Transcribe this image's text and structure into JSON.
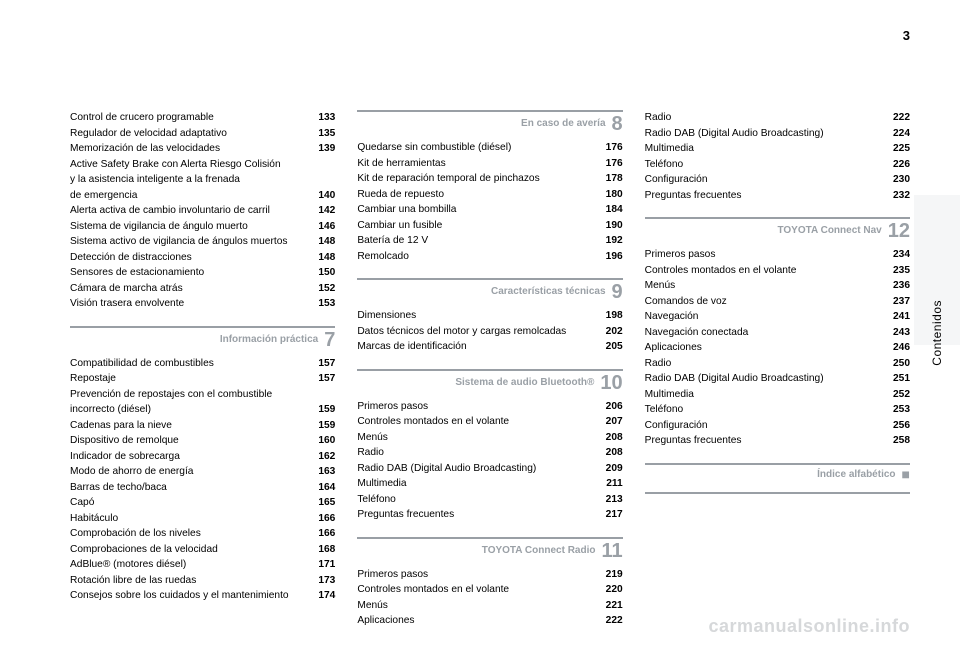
{
  "page_number": "3",
  "side_label": "Contenidos",
  "watermark": "carmanualsonline.info",
  "columns": [
    {
      "blocks": [
        {
          "type": "entries",
          "rows": [
            {
              "label": "Control de crucero programable",
              "page": "133"
            },
            {
              "label": "Regulador de velocidad adaptativo",
              "page": "135"
            },
            {
              "label": "Memorización de las velocidades",
              "page": "139"
            },
            {
              "label": "Active Safety Brake con Alerta Riesgo Colisión",
              "page": ""
            },
            {
              "label": "y la asistencia inteligente a la frenada",
              "page": ""
            },
            {
              "label": "de emergencia",
              "page": "140"
            },
            {
              "label": "Alerta activa de cambio involuntario de carril",
              "page": "142"
            },
            {
              "label": "Sistema de vigilancia de ángulo muerto",
              "page": "146"
            },
            {
              "label": "Sistema activo de vigilancia de ángulos muertos",
              "page": "148"
            },
            {
              "label": "Detección de distracciones",
              "page": "148"
            },
            {
              "label": "Sensores de estacionamiento",
              "page": "150"
            },
            {
              "label": "Cámara de marcha atrás",
              "page": "152"
            },
            {
              "label": "Visión trasera envolvente",
              "page": "153"
            }
          ]
        },
        {
          "type": "section",
          "title": "Información práctica",
          "num": "7"
        },
        {
          "type": "entries",
          "rows": [
            {
              "label": "Compatibilidad de combustibles",
              "page": "157"
            },
            {
              "label": "Repostaje",
              "page": "157"
            },
            {
              "label": "Prevención de repostajes con el combustible",
              "page": ""
            },
            {
              "label": "incorrecto (diésel)",
              "page": "159"
            },
            {
              "label": "Cadenas para la nieve",
              "page": "159"
            },
            {
              "label": "Dispositivo de remolque",
              "page": "160"
            },
            {
              "label": "Indicador de sobrecarga",
              "page": "162"
            },
            {
              "label": "Modo de ahorro de energía",
              "page": "163"
            },
            {
              "label": "Barras de techo/baca",
              "page": "164"
            },
            {
              "label": "Capó",
              "page": "165"
            },
            {
              "label": "Habitáculo",
              "page": "166"
            },
            {
              "label": "Comprobación de los niveles",
              "page": "166"
            },
            {
              "label": "Comprobaciones de la velocidad",
              "page": "168"
            },
            {
              "label": "AdBlue® (motores diésel)",
              "page": "171"
            },
            {
              "label": "Rotación libre de las ruedas",
              "page": "173"
            },
            {
              "label": "Consejos sobre los cuidados y el mantenimiento",
              "page": "174"
            }
          ]
        }
      ]
    },
    {
      "blocks": [
        {
          "type": "section",
          "title": "En caso de avería",
          "num": "8",
          "first": true
        },
        {
          "type": "entries",
          "rows": [
            {
              "label": "Quedarse sin combustible (diésel)",
              "page": "176"
            },
            {
              "label": "Kit de herramientas",
              "page": "176"
            },
            {
              "label": "Kit de reparación temporal de pinchazos",
              "page": "178"
            },
            {
              "label": "Rueda de repuesto",
              "page": "180"
            },
            {
              "label": "Cambiar una bombilla",
              "page": "184"
            },
            {
              "label": "Cambiar un fusible",
              "page": "190"
            },
            {
              "label": "Batería de 12 V",
              "page": "192"
            },
            {
              "label": "Remolcado",
              "page": "196"
            }
          ]
        },
        {
          "type": "section",
          "title": "Características técnicas",
          "num": "9"
        },
        {
          "type": "entries",
          "rows": [
            {
              "label": "Dimensiones",
              "page": "198"
            },
            {
              "label": "Datos técnicos del motor y cargas remolcadas",
              "page": "202"
            },
            {
              "label": "Marcas de identificación",
              "page": "205"
            }
          ]
        },
        {
          "type": "section",
          "title": "Sistema de audio Bluetooth®",
          "num": "10"
        },
        {
          "type": "entries",
          "rows": [
            {
              "label": "Primeros pasos",
              "page": "206"
            },
            {
              "label": "Controles montados en el volante",
              "page": "207"
            },
            {
              "label": "Menús",
              "page": "208"
            },
            {
              "label": "Radio",
              "page": "208"
            },
            {
              "label": "Radio DAB (Digital Audio Broadcasting)",
              "page": "209"
            },
            {
              "label": "Multimedia",
              "page": "211"
            },
            {
              "label": "Teléfono",
              "page": "213"
            },
            {
              "label": "Preguntas frecuentes",
              "page": "217"
            }
          ]
        },
        {
          "type": "section",
          "title": "TOYOTA Connect Radio",
          "num": "11"
        },
        {
          "type": "entries",
          "rows": [
            {
              "label": "Primeros pasos",
              "page": "219"
            },
            {
              "label": "Controles montados en el volante",
              "page": "220"
            },
            {
              "label": "Menús",
              "page": "221"
            },
            {
              "label": "Aplicaciones",
              "page": "222"
            }
          ]
        }
      ]
    },
    {
      "blocks": [
        {
          "type": "entries",
          "rows": [
            {
              "label": "Radio",
              "page": "222"
            },
            {
              "label": "Radio DAB (Digital Audio Broadcasting)",
              "page": "224"
            },
            {
              "label": "Multimedia",
              "page": "225"
            },
            {
              "label": "Teléfono",
              "page": "226"
            },
            {
              "label": "Configuración",
              "page": "230"
            },
            {
              "label": "Preguntas frecuentes",
              "page": "232"
            }
          ]
        },
        {
          "type": "section",
          "title": "TOYOTA Connect Nav",
          "num": "12"
        },
        {
          "type": "entries",
          "rows": [
            {
              "label": "Primeros pasos",
              "page": "234"
            },
            {
              "label": "Controles montados en el volante",
              "page": "235"
            },
            {
              "label": "Menús",
              "page": "236"
            },
            {
              "label": "Comandos de voz",
              "page": "237"
            },
            {
              "label": "Navegación",
              "page": "241"
            },
            {
              "label": "Navegación conectada",
              "page": "243"
            },
            {
              "label": "Aplicaciones",
              "page": "246"
            },
            {
              "label": "Radio",
              "page": "250"
            },
            {
              "label": "Radio DAB (Digital Audio Broadcasting)",
              "page": "251"
            },
            {
              "label": "Multimedia",
              "page": "252"
            },
            {
              "label": "Teléfono",
              "page": "253"
            },
            {
              "label": "Configuración",
              "page": "256"
            },
            {
              "label": "Preguntas frecuentes",
              "page": "258"
            }
          ]
        },
        {
          "type": "section",
          "title": "Índice alfabético",
          "num": "■",
          "bullet": true
        },
        {
          "type": "endrule"
        }
      ]
    }
  ]
}
